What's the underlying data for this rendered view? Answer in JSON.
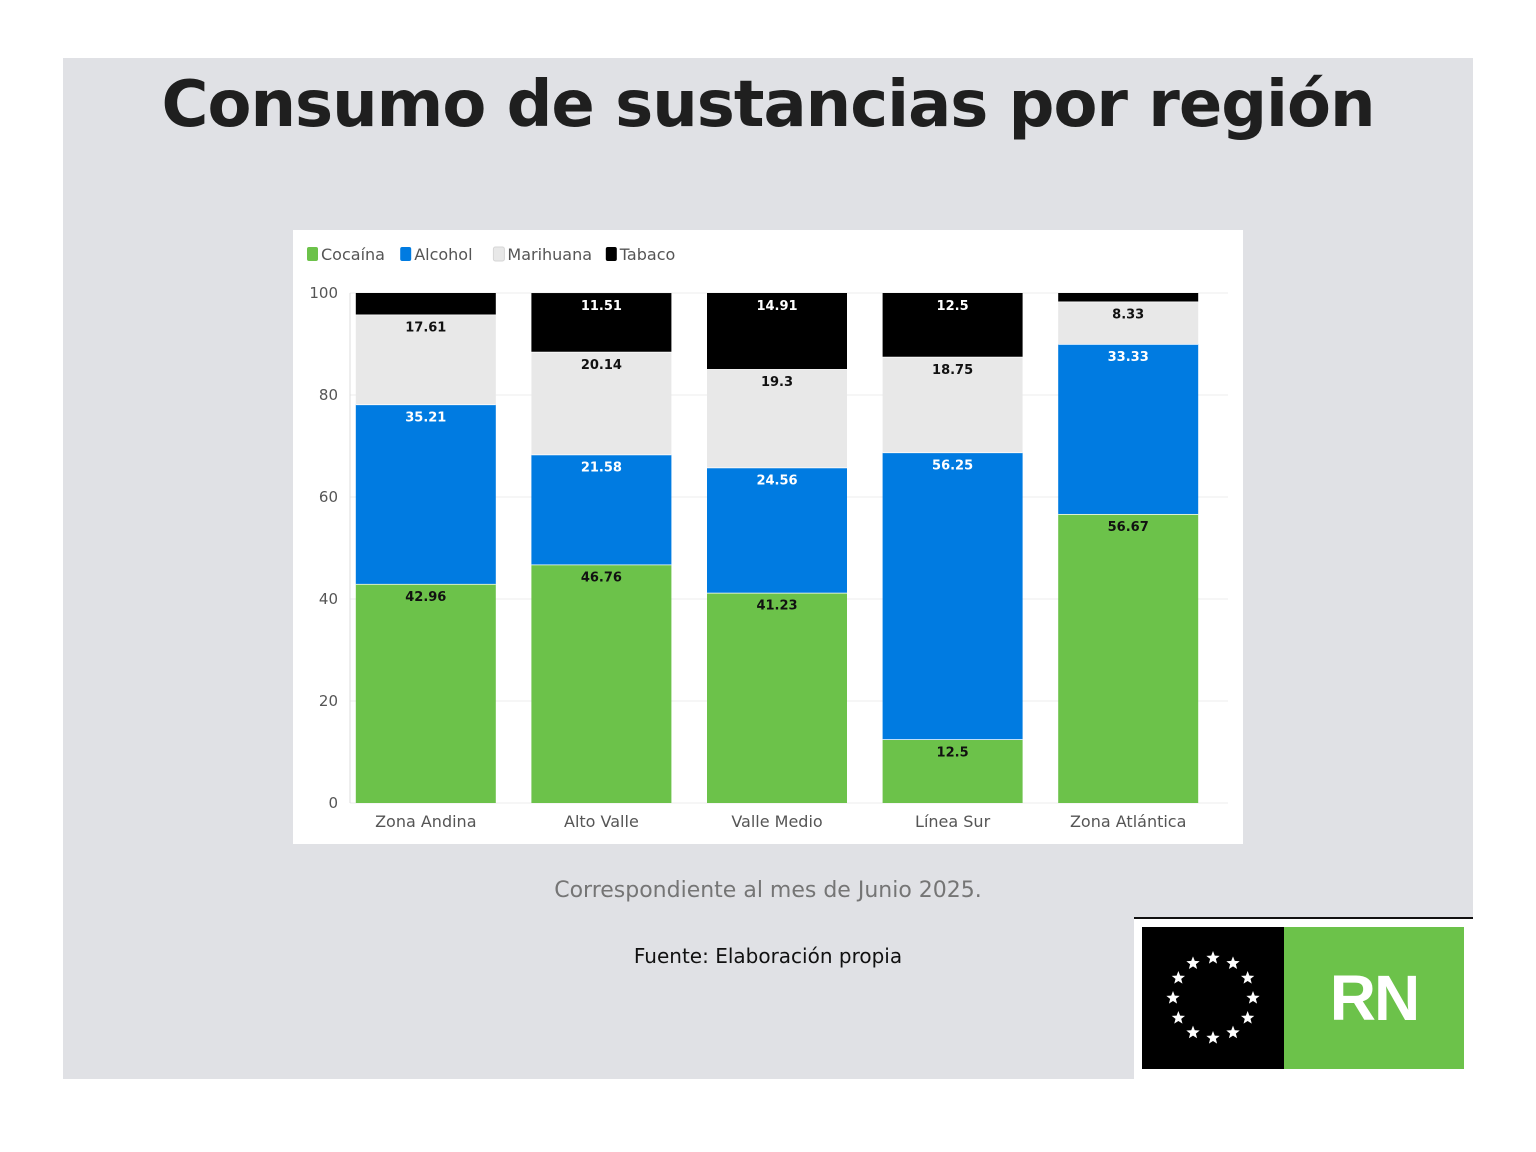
{
  "title": "Consumo de sustancias por región",
  "subtitle": "Correspondiente al mes de Junio 2025.",
  "source": "Fuente: Elaboración propia",
  "logo": {
    "text": "RN",
    "icon": "stars-circle-icon"
  },
  "colors": {
    "Cocaína": "#6cc24a",
    "Alcohol": "#007be1",
    "Marihuana": "#e8e8e8",
    "Tabaco": "#000000",
    "slide_background": "#e0e1e5"
  },
  "chart_data": {
    "type": "bar",
    "stacked": true,
    "categories": [
      "Zona Andina",
      "Alto Valle",
      "Valle Medio",
      "Línea Sur",
      "Zona Atlántica"
    ],
    "series": [
      {
        "name": "Cocaína",
        "values": [
          42.96,
          46.76,
          41.23,
          12.5,
          56.67
        ],
        "labels": [
          "42.96",
          "46.76",
          "41.23",
          "12.5",
          "56.67"
        ]
      },
      {
        "name": "Alcohol",
        "values": [
          35.21,
          21.58,
          24.56,
          56.25,
          33.33
        ],
        "labels": [
          "35.21",
          "21.58",
          "24.56",
          "56.25",
          "33.33"
        ]
      },
      {
        "name": "Marihuana",
        "values": [
          17.61,
          20.14,
          19.3,
          18.75,
          8.33
        ],
        "labels": [
          "17.61",
          "20.14",
          "19.3",
          "18.75",
          "8.33"
        ]
      },
      {
        "name": "Tabaco",
        "values": [
          4.22,
          11.51,
          14.91,
          12.5,
          1.67
        ],
        "labels": [
          "",
          "11.51",
          "14.91",
          "12.5",
          ""
        ]
      }
    ],
    "ylim": [
      0,
      100
    ],
    "yticks": [
      "0",
      "20",
      "40",
      "60",
      "80",
      "100"
    ],
    "legend": "top-left",
    "grid": true
  }
}
